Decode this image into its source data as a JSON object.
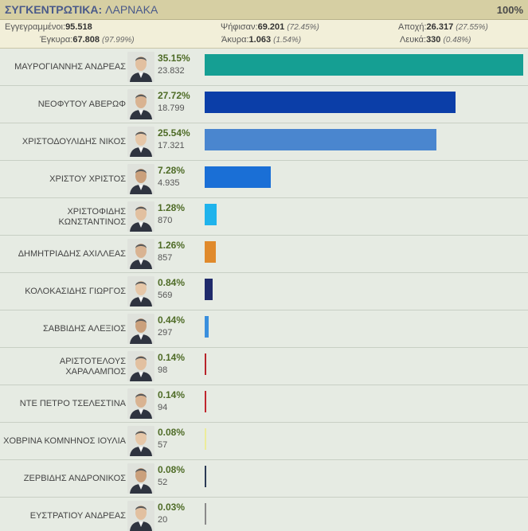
{
  "header": {
    "title": "ΣΥΓΚΕΝΤΡΩΤΙΚΑ:",
    "region": "ΛΑΡΝΑΚΑ",
    "counted_pct": "100%"
  },
  "stats": {
    "registered_label": "Εγγεγραμμένοι:",
    "registered_value": "95.518",
    "voted_label": "Ψήφισαν:",
    "voted_value": "69.201",
    "voted_pct": "(72.45%)",
    "abstention_label": "Αποχή:",
    "abstention_value": "26.317",
    "abstention_pct": "(27.55%)",
    "valid_label": "Έγκυρα:",
    "valid_value": "67.808",
    "valid_pct": "(97.99%)",
    "invalid_label": "Άκυρα:",
    "invalid_value": "1.063",
    "invalid_pct": "(1.54%)",
    "blank_label": "Λευκά:",
    "blank_value": "330",
    "blank_pct": "(0.48%)"
  },
  "candidates": [
    {
      "name": "ΜΑΥΡΟΓΙΑΝΝΗΣ ΑΝΔΡΕΑΣ",
      "pct": "35.15%",
      "votes": "23.832",
      "share": 35.15,
      "color": "#159f93"
    },
    {
      "name": "ΝΕΟΦΥΤΟΥ ΑΒΕΡΩΦ",
      "pct": "27.72%",
      "votes": "18.799",
      "share": 27.72,
      "color": "#0b3ea8"
    },
    {
      "name": "ΧΡΙΣΤΟΔΟΥΛΙΔΗΣ ΝΙΚΟΣ",
      "pct": "25.54%",
      "votes": "17.321",
      "share": 25.54,
      "color": "#4a86cf"
    },
    {
      "name": "ΧΡΙΣΤΟΥ ΧΡΙΣΤΟΣ",
      "pct": "7.28%",
      "votes": "4.935",
      "share": 7.28,
      "color": "#1a6fd6"
    },
    {
      "name": "ΧΡΙΣΤΟΦΙΔΗΣ ΚΩΝΣΤΑΝΤΙΝΟΣ",
      "pct": "1.28%",
      "votes": "870",
      "share": 1.28,
      "color": "#1fb3ec"
    },
    {
      "name": "ΔΗΜΗΤΡΙΑΔΗΣ ΑΧΙΛΛΕΑΣ",
      "pct": "1.26%",
      "votes": "857",
      "share": 1.26,
      "color": "#e08a2c"
    },
    {
      "name": "ΚΟΛΟΚΑΣΙΔΗΣ ΓΙΩΡΓΟΣ",
      "pct": "0.84%",
      "votes": "569",
      "share": 0.84,
      "color": "#1f2a6b"
    },
    {
      "name": "ΣΑΒΒΙΔΗΣ ΑΛΕΞΙΟΣ",
      "pct": "0.44%",
      "votes": "297",
      "share": 0.44,
      "color": "#3a8fdd"
    },
    {
      "name": "ΑΡΙΣΤΟΤΕΛΟΥΣ ΧΑΡΑΛΑΜΠΟΣ",
      "pct": "0.14%",
      "votes": "98",
      "share": 0.14,
      "color": "#b8242a"
    },
    {
      "name": "ΝΤΕ ΠΕΤΡΟ ΤΣΕΛΕΣΤΙΝΑ",
      "pct": "0.14%",
      "votes": "94",
      "share": 0.14,
      "color": "#c0262e"
    },
    {
      "name": "ΧΟΒΡΙΝΑ ΚΟΜΝΗΝΟΣ ΙΟΥΛΙΑ",
      "pct": "0.08%",
      "votes": "57",
      "share": 0.08,
      "color": "#ecec9a"
    },
    {
      "name": "ΖΕΡΒΙΔΗΣ ΑΝΔΡΟΝΙΚΟΣ",
      "pct": "0.08%",
      "votes": "52",
      "share": 0.08,
      "color": "#2b3a55"
    },
    {
      "name": "ΕΥΣΤΡΑΤΙΟΥ ΑΝΔΡΕΑΣ",
      "pct": "0.03%",
      "votes": "20",
      "share": 0.03,
      "color": "#8a8a8a"
    }
  ]
}
